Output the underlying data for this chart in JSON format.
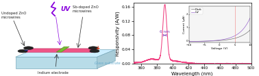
{
  "main_plot": {
    "xlim": [
      350,
      500
    ],
    "ylim": [
      0.0,
      0.17
    ],
    "yticks": [
      0.0,
      0.04,
      0.08,
      0.12,
      0.16
    ],
    "xlabel": "Wavelength (nm)",
    "ylabel": "Responsivity (A/W)",
    "peak_wavelength": 390,
    "peak_value": 0.155,
    "line_color": "#f04080",
    "annotation_text": "6 nm",
    "annotation_color": "#8844bb"
  },
  "inset_plot": {
    "xlabel": "Voltage (V)",
    "ylabel": "Current (μA)",
    "dark_color": "#777777",
    "uv_color": "#9966cc",
    "vline_color": "#f08080",
    "legend": [
      "Dark",
      "UV"
    ]
  },
  "schematic": {
    "substrate_face_color": "#b8dce8",
    "substrate_top_color": "#cceeff",
    "substrate_edge_color": "#7aaabb",
    "glass_text_color": "#66aacc",
    "wire_green_color": "#77bb33",
    "wire_pink_color": "#ee5588",
    "electrode_color": "#222222",
    "label_color": "#222222",
    "uv_color": "#8800dd",
    "plus_color": "#cc2200",
    "minus_color": "#222299"
  }
}
